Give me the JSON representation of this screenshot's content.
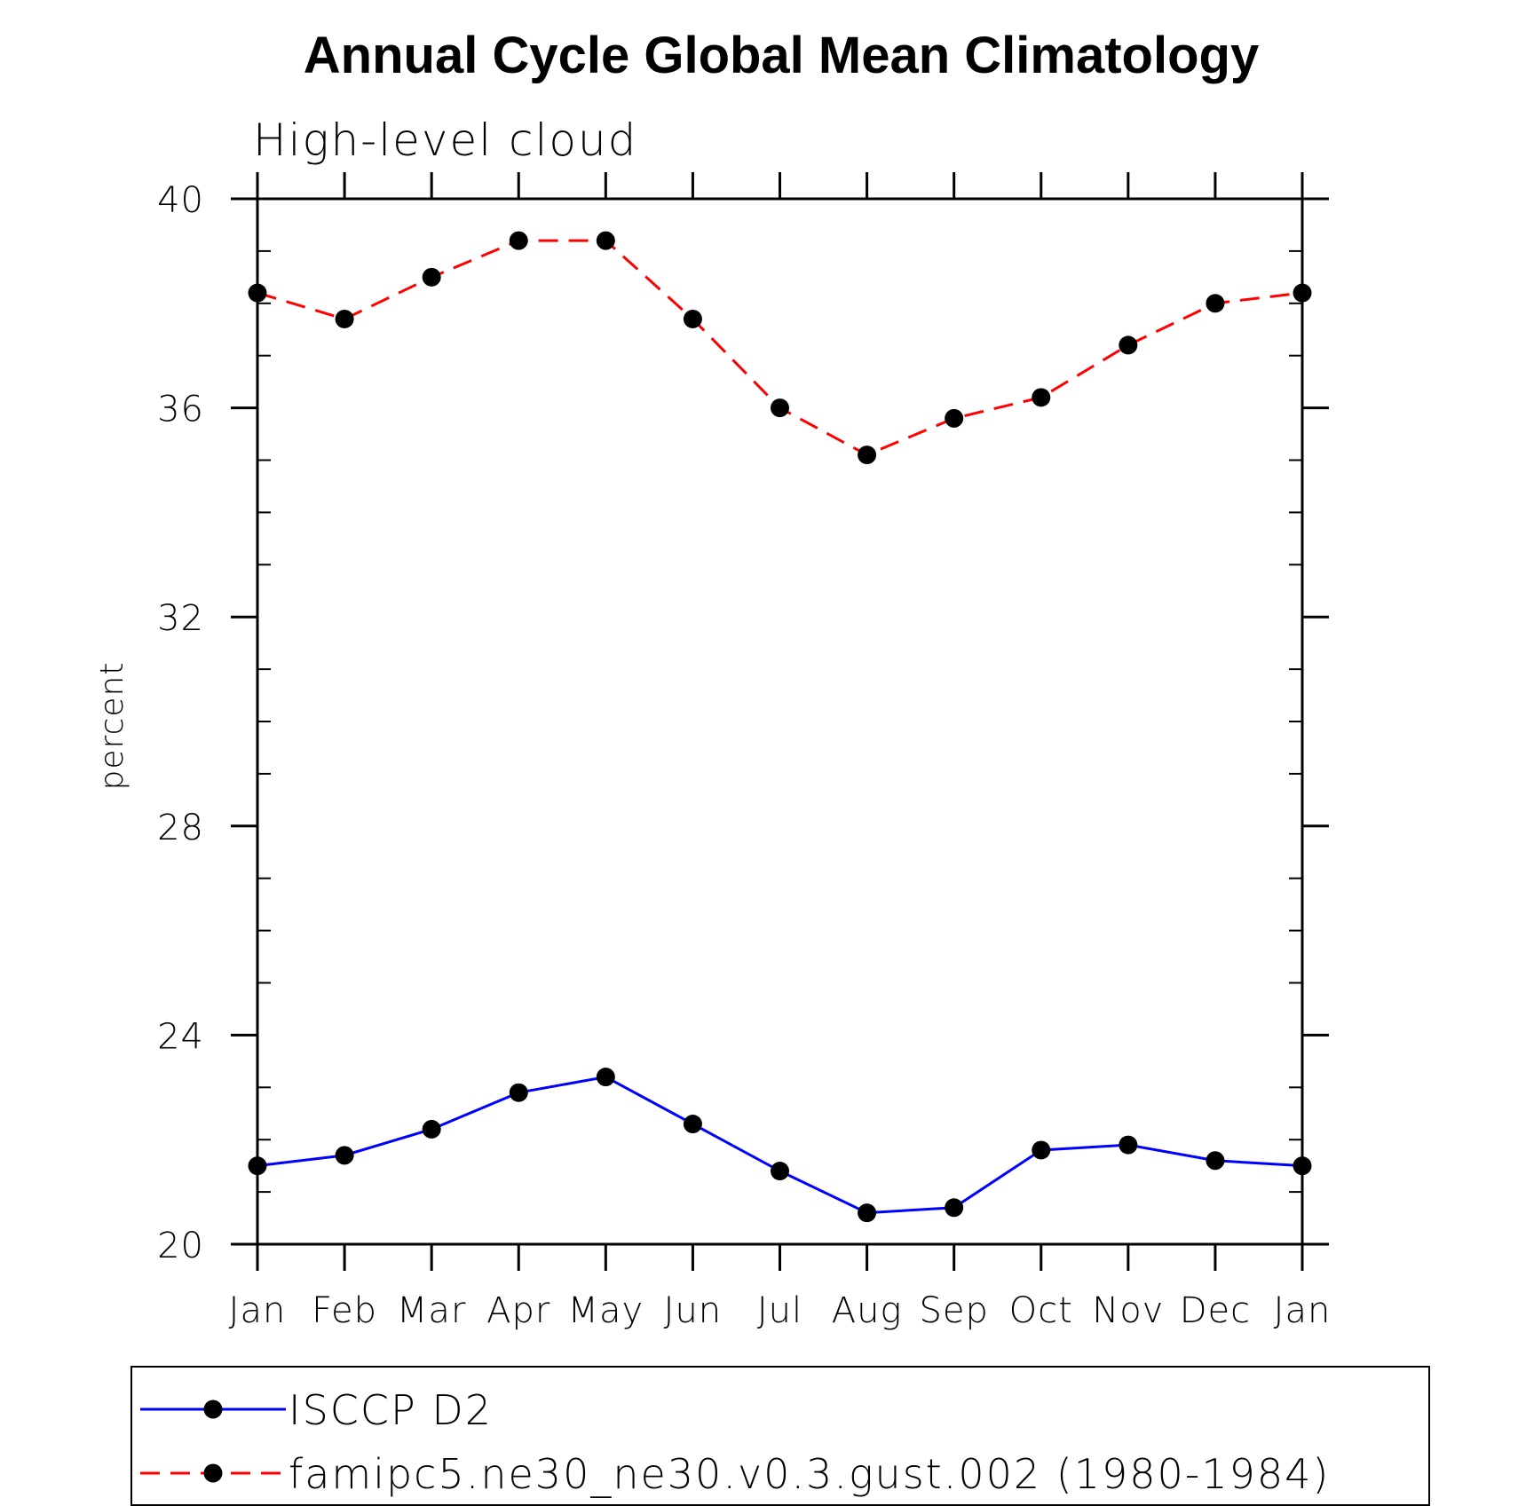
{
  "chart_data": {
    "type": "line",
    "title": "Annual Cycle Global Mean Climatology",
    "subtitle": "High-level cloud",
    "xlabel": "",
    "ylabel": "percent",
    "categories": [
      "Jan",
      "Feb",
      "Mar",
      "Apr",
      "May",
      "Jun",
      "Jul",
      "Aug",
      "Sep",
      "Oct",
      "Nov",
      "Dec",
      "Jan"
    ],
    "ylim": [
      20,
      40
    ],
    "yticks": [
      "20",
      "24",
      "28",
      "32",
      "36",
      "40"
    ],
    "grid": false,
    "legend_position": "bottom",
    "series": [
      {
        "name": "ISCCP D2",
        "color": "#0000ff",
        "dash": "solid",
        "marker": "filled-circle",
        "values": [
          21.5,
          21.7,
          22.2,
          22.9,
          23.2,
          22.3,
          21.4,
          20.6,
          20.7,
          21.8,
          21.9,
          21.6,
          21.5
        ]
      },
      {
        "name": "famipc5.ne30_ne30.v0.3.gust.002 (1980-1984)",
        "color": "#ff0000",
        "dash": "dashed",
        "marker": "filled-circle",
        "values": [
          38.2,
          37.7,
          38.5,
          39.2,
          39.2,
          37.7,
          36.0,
          35.1,
          35.8,
          36.2,
          37.2,
          38.0,
          38.2
        ]
      }
    ]
  }
}
